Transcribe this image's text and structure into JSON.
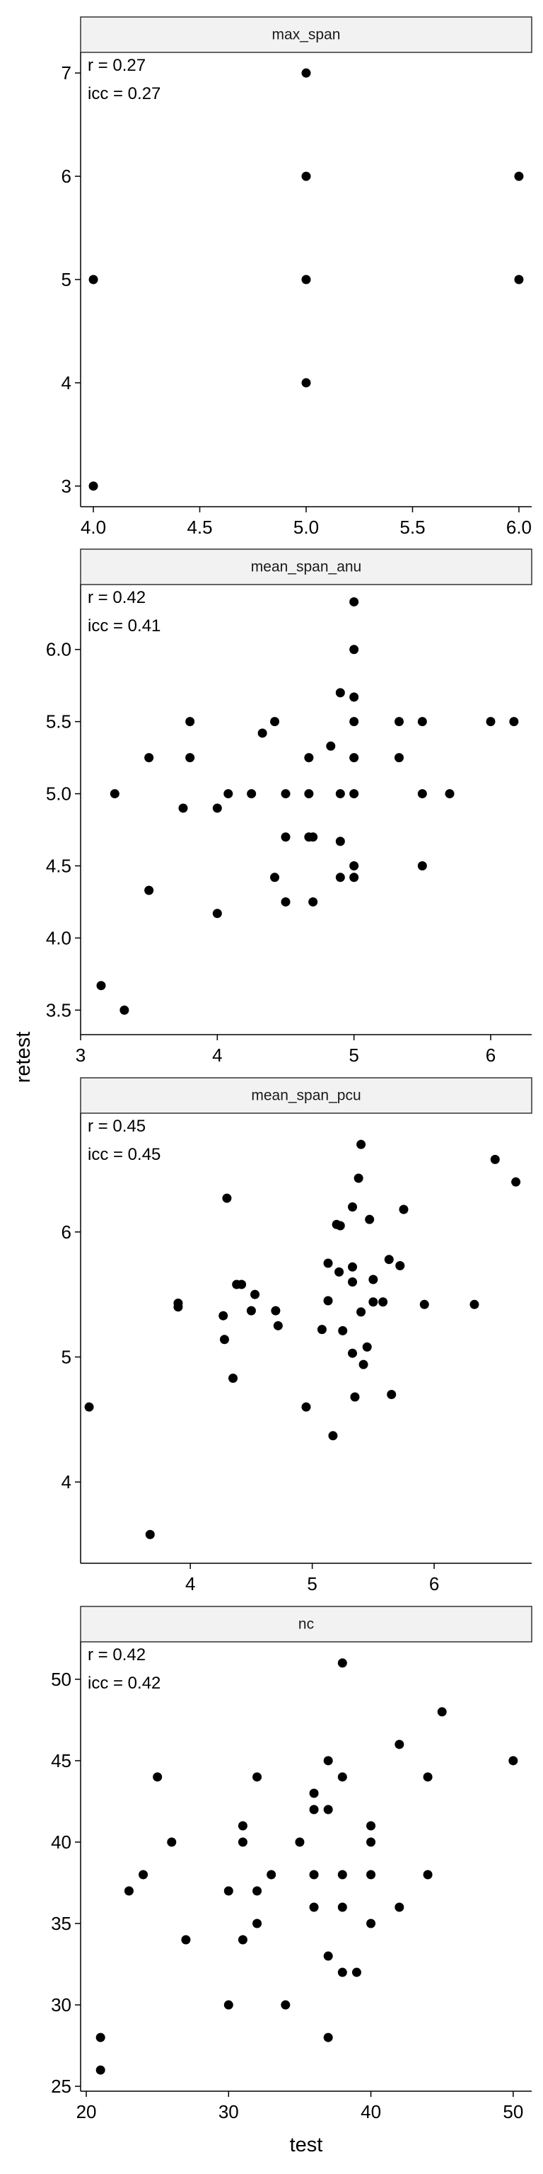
{
  "figure": {
    "xlabel": "test",
    "ylabel": "retest"
  },
  "chart_data": [
    {
      "type": "scatter",
      "title": "max_span",
      "annotations": [
        "r = 0.27",
        "icc = 0.27"
      ],
      "xlim": [
        3.94,
        6.06
      ],
      "ylim": [
        2.8,
        7.2
      ],
      "xticks": [
        4.0,
        4.5,
        5.0,
        5.5,
        6.0
      ],
      "xtick_labels": [
        "4.0",
        "4.5",
        "5.0",
        "5.5",
        "6.0"
      ],
      "yticks": [
        3,
        4,
        5,
        6,
        7
      ],
      "ytick_labels": [
        "3",
        "4",
        "5",
        "6",
        "7"
      ],
      "grid": false,
      "points": [
        [
          4.0,
          3
        ],
        [
          4.0,
          5
        ],
        [
          5.0,
          4
        ],
        [
          5.0,
          5
        ],
        [
          5.0,
          6
        ],
        [
          5.0,
          7
        ],
        [
          6.0,
          5
        ],
        [
          6.0,
          6
        ]
      ]
    },
    {
      "type": "scatter",
      "title": "mean_span_anu",
      "annotations": [
        "r = 0.42",
        "icc = 0.41"
      ],
      "xlim": [
        3.0,
        6.3
      ],
      "ylim": [
        3.33,
        6.45
      ],
      "xticks": [
        3,
        4,
        5,
        6
      ],
      "xtick_labels": [
        "3",
        "4",
        "5",
        "6"
      ],
      "yticks": [
        3.5,
        4.0,
        4.5,
        5.0,
        5.5,
        6.0
      ],
      "ytick_labels": [
        "3.5",
        "4.0",
        "4.5",
        "5.0",
        "5.5",
        "6.0"
      ],
      "grid": false,
      "points": [
        [
          3.15,
          3.67
        ],
        [
          3.32,
          3.5
        ],
        [
          3.25,
          5.0
        ],
        [
          3.5,
          4.33
        ],
        [
          3.5,
          5.25
        ],
        [
          3.8,
          5.25
        ],
        [
          3.8,
          5.5
        ],
        [
          3.75,
          4.9
        ],
        [
          4.0,
          4.17
        ],
        [
          4.0,
          4.9
        ],
        [
          4.08,
          5.0
        ],
        [
          4.25,
          5.0
        ],
        [
          4.33,
          5.42
        ],
        [
          4.42,
          5.5
        ],
        [
          4.42,
          4.42
        ],
        [
          4.5,
          5.0
        ],
        [
          4.5,
          4.7
        ],
        [
          4.5,
          4.25
        ],
        [
          4.67,
          4.7
        ],
        [
          4.67,
          5.0
        ],
        [
          4.67,
          5.25
        ],
        [
          4.7,
          4.25
        ],
        [
          4.7,
          4.7
        ],
        [
          4.83,
          5.33
        ],
        [
          4.9,
          5.7
        ],
        [
          4.9,
          5.0
        ],
        [
          4.9,
          4.67
        ],
        [
          4.9,
          4.42
        ],
        [
          5.0,
          6.33
        ],
        [
          5.0,
          6.0
        ],
        [
          5.0,
          5.67
        ],
        [
          5.0,
          5.5
        ],
        [
          5.0,
          5.25
        ],
        [
          5.0,
          5.0
        ],
        [
          5.0,
          4.5
        ],
        [
          5.0,
          4.42
        ],
        [
          5.33,
          5.5
        ],
        [
          5.33,
          5.25
        ],
        [
          5.5,
          5.5
        ],
        [
          5.5,
          5.0
        ],
        [
          5.5,
          4.5
        ],
        [
          5.7,
          5.0
        ],
        [
          6.0,
          5.5
        ],
        [
          6.17,
          5.5
        ]
      ]
    },
    {
      "type": "scatter",
      "title": "mean_span_pcu",
      "annotations": [
        "r = 0.45",
        "icc = 0.45"
      ],
      "xlim": [
        3.1,
        6.8
      ],
      "ylim": [
        3.35,
        6.95
      ],
      "xticks": [
        4,
        5,
        6
      ],
      "xtick_labels": [
        "4",
        "5",
        "6"
      ],
      "yticks": [
        4,
        5,
        6
      ],
      "ytick_labels": [
        "4",
        "5",
        "6"
      ],
      "grid": false,
      "points": [
        [
          3.17,
          4.6
        ],
        [
          3.67,
          3.58
        ],
        [
          3.9,
          5.4
        ],
        [
          3.9,
          5.43
        ],
        [
          4.27,
          5.33
        ],
        [
          4.28,
          5.14
        ],
        [
          4.3,
          6.27
        ],
        [
          4.35,
          4.83
        ],
        [
          4.38,
          5.58
        ],
        [
          4.42,
          5.58
        ],
        [
          4.5,
          5.37
        ],
        [
          4.53,
          5.5
        ],
        [
          4.7,
          5.37
        ],
        [
          4.72,
          5.25
        ],
        [
          4.95,
          4.6
        ],
        [
          5.08,
          5.22
        ],
        [
          5.13,
          5.45
        ],
        [
          5.13,
          5.75
        ],
        [
          5.17,
          4.37
        ],
        [
          5.2,
          6.06
        ],
        [
          5.22,
          5.68
        ],
        [
          5.23,
          6.05
        ],
        [
          5.25,
          5.21
        ],
        [
          5.33,
          5.72
        ],
        [
          5.33,
          6.2
        ],
        [
          5.33,
          5.6
        ],
        [
          5.33,
          5.03
        ],
        [
          5.35,
          4.68
        ],
        [
          5.38,
          6.43
        ],
        [
          5.4,
          6.7
        ],
        [
          5.4,
          5.36
        ],
        [
          5.42,
          4.94
        ],
        [
          5.45,
          5.08
        ],
        [
          5.47,
          6.1
        ],
        [
          5.5,
          5.44
        ],
        [
          5.5,
          5.62
        ],
        [
          5.58,
          5.44
        ],
        [
          5.63,
          5.78
        ],
        [
          5.65,
          4.7
        ],
        [
          5.72,
          5.73
        ],
        [
          5.75,
          6.18
        ],
        [
          5.92,
          5.42
        ],
        [
          6.33,
          5.42
        ],
        [
          6.5,
          6.58
        ],
        [
          6.67,
          6.4
        ]
      ]
    },
    {
      "type": "scatter",
      "title": "nc",
      "annotations": [
        "r = 0.42",
        "icc = 0.42"
      ],
      "xlim": [
        19.6,
        51.3
      ],
      "ylim": [
        24.7,
        52.3
      ],
      "xticks": [
        20,
        30,
        40,
        50
      ],
      "xtick_labels": [
        "20",
        "30",
        "40",
        "50"
      ],
      "yticks": [
        25,
        30,
        35,
        40,
        45,
        50
      ],
      "ytick_labels": [
        "25",
        "30",
        "35",
        "40",
        "45",
        "50"
      ],
      "grid": false,
      "points": [
        [
          21,
          26
        ],
        [
          21,
          28
        ],
        [
          23,
          37
        ],
        [
          24,
          38
        ],
        [
          25,
          44
        ],
        [
          26,
          40
        ],
        [
          27,
          34
        ],
        [
          30,
          30
        ],
        [
          30,
          37
        ],
        [
          31,
          34
        ],
        [
          31,
          40
        ],
        [
          31,
          41
        ],
        [
          32,
          35
        ],
        [
          32,
          37
        ],
        [
          32,
          44
        ],
        [
          33,
          38
        ],
        [
          34,
          30
        ],
        [
          35,
          40
        ],
        [
          36,
          36
        ],
        [
          36,
          38
        ],
        [
          36,
          42
        ],
        [
          36,
          43
        ],
        [
          37,
          28
        ],
        [
          37,
          33
        ],
        [
          37,
          42
        ],
        [
          37,
          45
        ],
        [
          38,
          32
        ],
        [
          38,
          36
        ],
        [
          38,
          38
        ],
        [
          38,
          44
        ],
        [
          38,
          51
        ],
        [
          39,
          32
        ],
        [
          40,
          35
        ],
        [
          40,
          38
        ],
        [
          40,
          40
        ],
        [
          40,
          41
        ],
        [
          42,
          36
        ],
        [
          42,
          46
        ],
        [
          44,
          38
        ],
        [
          44,
          44
        ],
        [
          45,
          48
        ],
        [
          50,
          45
        ]
      ]
    }
  ]
}
